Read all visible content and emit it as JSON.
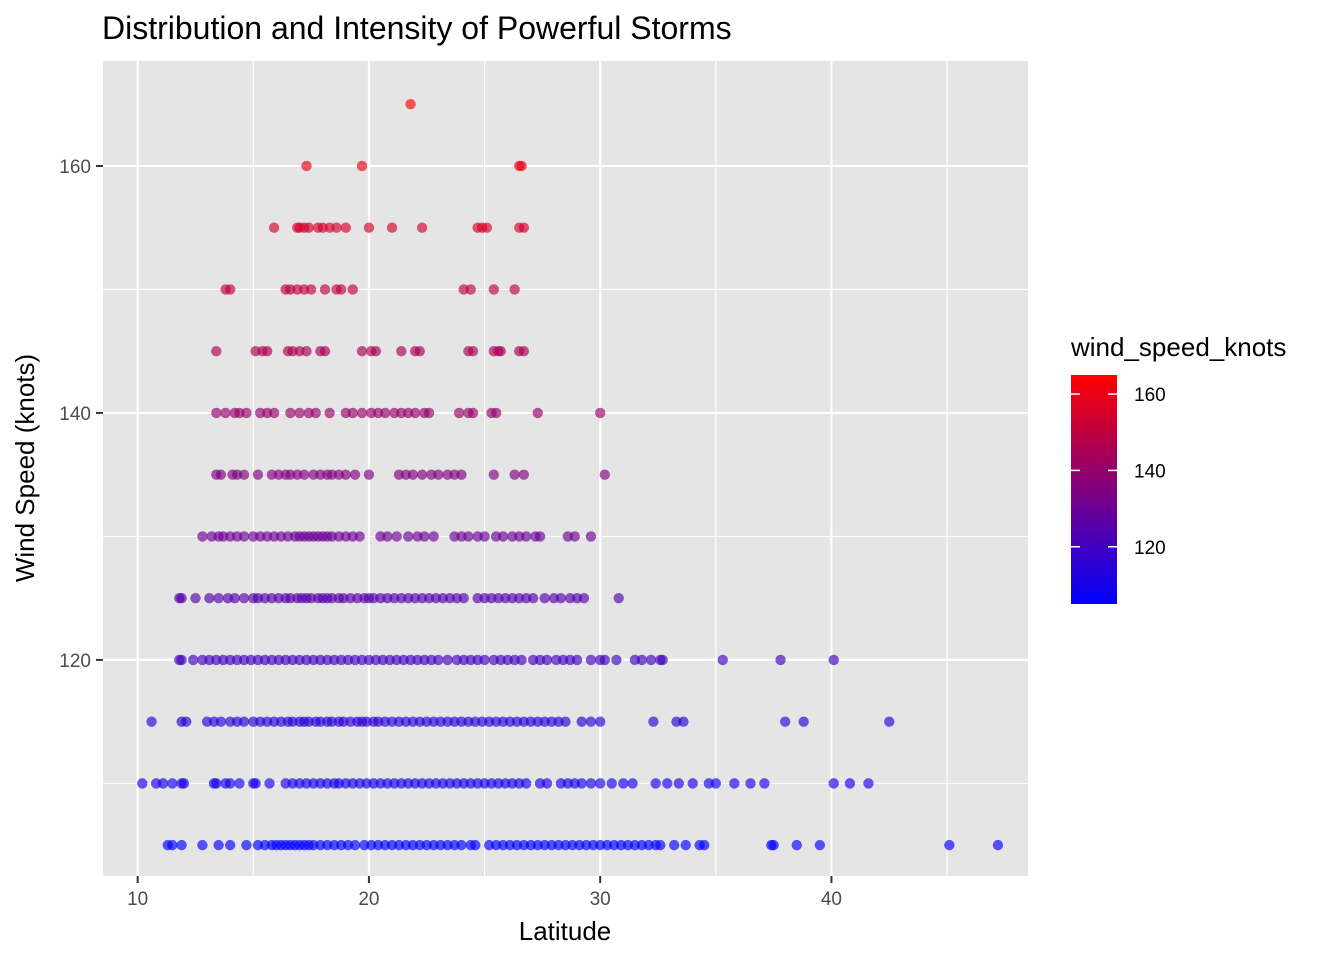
{
  "chart_data": {
    "type": "scatter",
    "title": "Distribution and Intensity of Powerful Storms",
    "xlabel": "Latitude",
    "ylabel": "Wind Speed (knots)",
    "xlim": [
      8.5,
      48.5
    ],
    "ylim": [
      102.5,
      168.5
    ],
    "xticks": [
      10,
      20,
      30,
      40
    ],
    "yticks": [
      120,
      140,
      160
    ],
    "grid": true,
    "legend": {
      "title": "wind_speed_knots",
      "position": "right",
      "range": [
        105,
        165
      ],
      "ticks": [
        120,
        140,
        160
      ],
      "low_color": "#0000FF",
      "high_color": "#FF0000"
    },
    "colors": {
      "panel": "#E5E5E5",
      "grid": "#FFFFFF",
      "low": "#0000FF",
      "high": "#FF0000"
    },
    "points_by_speed": [
      {
        "y": 165,
        "x": [
          21.8
        ]
      },
      {
        "y": 160,
        "x": [
          17.3,
          19.7,
          26.5,
          26.6
        ]
      },
      {
        "y": 155,
        "x": [
          15.9,
          16.9,
          17.0,
          17.2,
          17.4,
          17.8,
          18.0,
          18.3,
          18.6,
          19.0,
          20.0,
          21.0,
          22.3,
          24.7,
          24.9,
          25.1,
          26.5,
          26.7
        ]
      },
      {
        "y": 150,
        "x": [
          13.8,
          14.0,
          16.4,
          16.6,
          16.9,
          17.2,
          17.5,
          18.1,
          18.6,
          18.8,
          19.3,
          24.1,
          24.4,
          25.4,
          26.3
        ]
      },
      {
        "y": 145,
        "x": [
          13.4,
          15.1,
          15.4,
          15.6,
          16.5,
          16.7,
          17.0,
          17.3,
          17.9,
          18.1,
          19.7,
          20.1,
          20.3,
          21.4,
          22.0,
          22.2,
          24.3,
          24.5,
          25.4,
          25.6,
          25.7,
          26.5,
          26.7
        ]
      },
      {
        "y": 140,
        "x": [
          13.4,
          13.8,
          14.2,
          14.4,
          14.7,
          15.3,
          15.6,
          15.9,
          16.6,
          17.0,
          17.4,
          17.7,
          18.3,
          19.0,
          19.3,
          19.7,
          20.1,
          20.4,
          20.7,
          21.1,
          21.4,
          21.7,
          22.0,
          22.4,
          22.6,
          23.9,
          24.3,
          24.5,
          25.3,
          25.5,
          27.3,
          30.0
        ]
      },
      {
        "y": 135,
        "x": [
          13.4,
          13.6,
          14.1,
          14.3,
          14.6,
          15.2,
          15.8,
          16.1,
          16.4,
          16.6,
          16.9,
          17.2,
          17.6,
          17.9,
          18.2,
          18.4,
          18.7,
          19.0,
          19.4,
          20.0,
          21.3,
          21.6,
          21.9,
          22.3,
          22.7,
          23.0,
          23.4,
          23.7,
          24.0,
          25.4,
          26.3,
          26.7,
          30.2
        ]
      },
      {
        "y": 130,
        "x": [
          12.8,
          13.2,
          13.5,
          13.7,
          14.0,
          14.3,
          14.6,
          15.0,
          15.3,
          15.6,
          15.9,
          16.2,
          16.5,
          16.8,
          17.0,
          17.2,
          17.4,
          17.6,
          17.8,
          18.0,
          18.2,
          18.4,
          18.7,
          19.0,
          19.3,
          19.6,
          20.5,
          20.8,
          21.2,
          21.7,
          22.1,
          22.4,
          22.8,
          23.7,
          24.0,
          24.3,
          24.7,
          25.0,
          25.5,
          25.8,
          26.2,
          26.5,
          26.8,
          27.2,
          27.4,
          28.6,
          28.9,
          29.6
        ]
      },
      {
        "y": 125,
        "x": [
          11.8,
          11.9,
          12.5,
          13.1,
          13.5,
          13.9,
          14.2,
          14.6,
          15.0,
          15.2,
          15.5,
          15.8,
          16.1,
          16.4,
          16.6,
          16.9,
          17.1,
          17.3,
          17.5,
          17.8,
          18.0,
          18.2,
          18.4,
          18.7,
          18.9,
          19.2,
          19.5,
          19.8,
          20.0,
          20.2,
          20.5,
          20.8,
          21.1,
          21.4,
          21.7,
          22.0,
          22.3,
          22.6,
          22.9,
          23.2,
          23.5,
          23.8,
          24.1,
          24.7,
          25.0,
          25.3,
          25.6,
          25.9,
          26.2,
          26.5,
          26.8,
          27.1,
          27.6,
          28.0,
          28.3,
          28.7,
          29.0,
          29.3,
          30.8
        ]
      },
      {
        "y": 120,
        "x": [
          11.8,
          11.9,
          12.4,
          12.8,
          13.1,
          13.4,
          13.7,
          14.0,
          14.3,
          14.6,
          14.9,
          15.2,
          15.5,
          15.8,
          16.1,
          16.4,
          16.7,
          17.0,
          17.3,
          17.6,
          17.9,
          18.2,
          18.5,
          18.8,
          19.1,
          19.4,
          19.7,
          20.0,
          20.3,
          20.6,
          20.9,
          21.2,
          21.5,
          21.8,
          22.1,
          22.4,
          22.7,
          23.0,
          23.4,
          23.8,
          24.1,
          24.4,
          24.7,
          25.0,
          25.4,
          25.7,
          26.0,
          26.3,
          26.6,
          27.1,
          27.4,
          27.7,
          28.1,
          28.4,
          28.7,
          29.0,
          29.6,
          30.0,
          30.2,
          30.7,
          31.5,
          31.8,
          32.2,
          32.6,
          32.7,
          35.3,
          37.8,
          40.1
        ]
      },
      {
        "y": 115,
        "x": [
          10.6,
          11.9,
          12.1,
          13.0,
          13.3,
          13.6,
          14.0,
          14.3,
          14.6,
          15.0,
          15.3,
          15.6,
          15.9,
          16.2,
          16.5,
          16.7,
          17.0,
          17.2,
          17.4,
          17.7,
          17.9,
          18.2,
          18.4,
          18.7,
          18.9,
          19.2,
          19.5,
          19.7,
          19.9,
          20.2,
          20.4,
          20.7,
          21.0,
          21.3,
          21.6,
          21.9,
          22.2,
          22.5,
          22.8,
          23.1,
          23.4,
          23.7,
          24.0,
          24.3,
          24.6,
          24.9,
          25.2,
          25.5,
          25.8,
          26.1,
          26.4,
          26.7,
          27.0,
          27.3,
          27.6,
          27.9,
          28.2,
          28.5,
          29.2,
          29.6,
          30.0,
          32.3,
          33.3,
          33.6,
          38.0,
          38.8,
          42.5
        ]
      },
      {
        "y": 110,
        "x": [
          10.2,
          10.8,
          11.1,
          11.5,
          11.9,
          12.0,
          13.3,
          13.4,
          13.8,
          14.0,
          14.4,
          15.0,
          15.1,
          15.7,
          16.4,
          16.7,
          17.0,
          17.3,
          17.6,
          17.9,
          18.2,
          18.5,
          18.7,
          19.0,
          19.3,
          19.6,
          19.9,
          20.2,
          20.5,
          20.8,
          21.1,
          21.4,
          21.7,
          22.0,
          22.3,
          22.6,
          22.9,
          23.2,
          23.5,
          23.8,
          24.1,
          24.4,
          24.7,
          25.0,
          25.3,
          25.6,
          25.9,
          26.2,
          26.5,
          26.8,
          27.4,
          27.7,
          28.3,
          28.6,
          28.9,
          29.2,
          29.6,
          30.0,
          30.5,
          31.0,
          31.4,
          32.4,
          32.9,
          33.4,
          34.0,
          34.7,
          35.0,
          35.8,
          36.5,
          37.1,
          40.1,
          40.8,
          41.6
        ]
      },
      {
        "y": 105,
        "x": [
          11.3,
          11.5,
          11.9,
          12.8,
          13.5,
          14.0,
          14.7,
          15.2,
          15.5,
          15.8,
          16.0,
          16.2,
          16.4,
          16.6,
          16.8,
          17.0,
          17.2,
          17.4,
          17.6,
          17.9,
          18.2,
          18.5,
          18.8,
          19.1,
          19.4,
          19.8,
          20.1,
          20.4,
          20.7,
          21.0,
          21.3,
          21.6,
          21.9,
          22.2,
          22.5,
          22.8,
          23.1,
          23.4,
          23.7,
          24.0,
          24.4,
          24.6,
          25.2,
          25.5,
          25.8,
          26.1,
          26.4,
          26.7,
          27.0,
          27.3,
          27.6,
          27.9,
          28.2,
          28.5,
          28.8,
          29.1,
          29.4,
          29.7,
          30.0,
          30.3,
          30.6,
          30.9,
          31.2,
          31.5,
          31.8,
          32.1,
          32.4,
          32.6,
          33.2,
          33.7,
          34.3,
          34.5,
          37.4,
          37.5,
          38.5,
          39.5,
          45.1,
          47.2
        ]
      }
    ]
  }
}
